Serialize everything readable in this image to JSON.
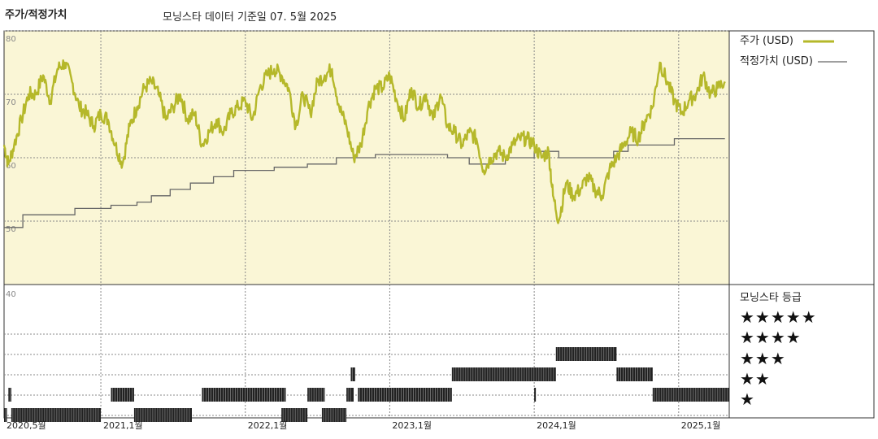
{
  "header": {
    "title": "주가/적정가치",
    "data_source": "모닝스타 데이터 기준일 07. 5월 2025"
  },
  "legend": {
    "price_label": "주가 (USD)",
    "fair_value_label": "적정가치 (USD)",
    "price_color": "#b5b82a",
    "fair_value_color": "#666666"
  },
  "rating_panel": {
    "title": "모닝스타 등급",
    "stars": [
      "★★★★★",
      "★★★★",
      "★★★",
      "★★",
      "★"
    ]
  },
  "colors": {
    "plot_background": "#faf6d6",
    "rating_bar": "#222222",
    "grid": "#888888"
  },
  "chart_data": [
    {
      "type": "line",
      "title": "주가/적정가치",
      "y_ticks": [
        50,
        60,
        70,
        80
      ],
      "ylim": [
        40,
        80
      ],
      "x_ticks": [
        "2020,5월",
        "2021,1월",
        "2022,1월",
        "2023,1월",
        "2024,1월",
        "2025,1월"
      ],
      "x_tick_dates": [
        2020.33,
        2021.0,
        2022.0,
        2023.0,
        2024.0,
        2025.0
      ],
      "xlim": [
        2020.33,
        2025.35
      ],
      "series": [
        {
          "name": "주가 (USD)",
          "points": [
            [
              2020.33,
              62
            ],
            [
              2020.36,
              59
            ],
            [
              2020.4,
              62
            ],
            [
              2020.45,
              66
            ],
            [
              2020.5,
              70
            ],
            [
              2020.55,
              70
            ],
            [
              2020.6,
              73
            ],
            [
              2020.65,
              69
            ],
            [
              2020.7,
              74
            ],
            [
              2020.75,
              75
            ],
            [
              2020.8,
              72
            ],
            [
              2020.85,
              68
            ],
            [
              2020.9,
              67
            ],
            [
              2020.95,
              65
            ],
            [
              2021.0,
              67
            ],
            [
              2021.05,
              66
            ],
            [
              2021.1,
              62
            ],
            [
              2021.15,
              59
            ],
            [
              2021.2,
              65
            ],
            [
              2021.25,
              68
            ],
            [
              2021.3,
              71
            ],
            [
              2021.35,
              72
            ],
            [
              2021.4,
              70
            ],
            [
              2021.45,
              66
            ],
            [
              2021.5,
              68
            ],
            [
              2021.55,
              70
            ],
            [
              2021.6,
              66
            ],
            [
              2021.65,
              67
            ],
            [
              2021.7,
              62
            ],
            [
              2021.75,
              64
            ],
            [
              2021.8,
              66
            ],
            [
              2021.85,
              64
            ],
            [
              2021.9,
              67
            ],
            [
              2021.95,
              68
            ],
            [
              2022.0,
              69
            ],
            [
              2022.05,
              66
            ],
            [
              2022.1,
              71
            ],
            [
              2022.15,
              73
            ],
            [
              2022.2,
              74
            ],
            [
              2022.25,
              73
            ],
            [
              2022.3,
              71
            ],
            [
              2022.35,
              65
            ],
            [
              2022.4,
              70
            ],
            [
              2022.45,
              67
            ],
            [
              2022.5,
              72
            ],
            [
              2022.55,
              73
            ],
            [
              2022.6,
              74
            ],
            [
              2022.65,
              68
            ],
            [
              2022.7,
              65
            ],
            [
              2022.75,
              60
            ],
            [
              2022.8,
              62
            ],
            [
              2022.85,
              68
            ],
            [
              2022.9,
              71
            ],
            [
              2022.95,
              71
            ],
            [
              2023.0,
              73
            ],
            [
              2023.05,
              69
            ],
            [
              2023.1,
              66
            ],
            [
              2023.15,
              71
            ],
            [
              2023.2,
              68
            ],
            [
              2023.25,
              70
            ],
            [
              2023.3,
              66
            ],
            [
              2023.35,
              70
            ],
            [
              2023.4,
              65
            ],
            [
              2023.45,
              64
            ],
            [
              2023.5,
              62
            ],
            [
              2023.55,
              64
            ],
            [
              2023.6,
              63
            ],
            [
              2023.65,
              58
            ],
            [
              2023.7,
              60
            ],
            [
              2023.75,
              61
            ],
            [
              2023.8,
              60
            ],
            [
              2023.85,
              62
            ],
            [
              2023.9,
              63
            ],
            [
              2023.95,
              63
            ],
            [
              2024.0,
              62
            ],
            [
              2024.05,
              60
            ],
            [
              2024.1,
              61
            ],
            [
              2024.13,
              54
            ],
            [
              2024.17,
              50
            ],
            [
              2024.22,
              56
            ],
            [
              2024.27,
              54
            ],
            [
              2024.32,
              55
            ],
            [
              2024.37,
              57
            ],
            [
              2024.42,
              55
            ],
            [
              2024.47,
              54
            ],
            [
              2024.52,
              58
            ],
            [
              2024.57,
              60
            ],
            [
              2024.62,
              62
            ],
            [
              2024.67,
              64
            ],
            [
              2024.72,
              63
            ],
            [
              2024.77,
              66
            ],
            [
              2024.82,
              68
            ],
            [
              2024.87,
              75
            ],
            [
              2024.92,
              72
            ],
            [
              2024.97,
              69
            ],
            [
              2025.02,
              67
            ],
            [
              2025.07,
              69
            ],
            [
              2025.12,
              70
            ],
            [
              2025.17,
              73
            ],
            [
              2025.22,
              70
            ],
            [
              2025.27,
              71
            ],
            [
              2025.32,
              72
            ]
          ]
        },
        {
          "name": "적정가치 (USD)",
          "steps": [
            [
              2020.33,
              49
            ],
            [
              2020.46,
              51
            ],
            [
              2020.82,
              52
            ],
            [
              2021.07,
              52.5
            ],
            [
              2021.25,
              53
            ],
            [
              2021.35,
              54
            ],
            [
              2021.48,
              55
            ],
            [
              2021.62,
              56
            ],
            [
              2021.78,
              57
            ],
            [
              2021.92,
              58
            ],
            [
              2022.2,
              58.5
            ],
            [
              2022.43,
              59
            ],
            [
              2022.63,
              60
            ],
            [
              2022.9,
              60.5
            ],
            [
              2023.4,
              60
            ],
            [
              2023.55,
              59
            ],
            [
              2023.8,
              60
            ],
            [
              2024.0,
              61
            ],
            [
              2024.17,
              60
            ],
            [
              2024.55,
              61
            ],
            [
              2024.65,
              62
            ],
            [
              2024.97,
              63
            ],
            [
              2025.32,
              63
            ]
          ]
        }
      ]
    },
    {
      "type": "bar",
      "title": "모닝스타 등급",
      "levels": [
        5,
        4,
        3,
        2,
        1
      ],
      "segments": [
        {
          "stars": 2,
          "from": 2020.36,
          "to": 2020.38
        },
        {
          "stars": 1,
          "from": 2020.33,
          "to": 2020.35
        },
        {
          "stars": 1,
          "from": 2020.38,
          "to": 2021.0
        },
        {
          "stars": 2,
          "from": 2021.07,
          "to": 2021.23
        },
        {
          "stars": 1,
          "from": 2021.23,
          "to": 2021.63
        },
        {
          "stars": 2,
          "from": 2021.7,
          "to": 2022.28
        },
        {
          "stars": 1,
          "from": 2022.25,
          "to": 2022.43
        },
        {
          "stars": 2,
          "from": 2022.43,
          "to": 2022.55
        },
        {
          "stars": 1,
          "from": 2022.53,
          "to": 2022.7
        },
        {
          "stars": 2,
          "from": 2022.7,
          "to": 2022.75
        },
        {
          "stars": 3,
          "from": 2022.73,
          "to": 2022.76
        },
        {
          "stars": 2,
          "from": 2022.78,
          "to": 2023.43
        },
        {
          "stars": 3,
          "from": 2023.43,
          "to": 2024.15
        },
        {
          "stars": 2,
          "from": 2024.0,
          "to": 2024.01
        },
        {
          "stars": 4,
          "from": 2024.15,
          "to": 2024.57
        },
        {
          "stars": 3,
          "from": 2024.57,
          "to": 2024.82
        },
        {
          "stars": 2,
          "from": 2024.82,
          "to": 2025.35
        }
      ]
    }
  ]
}
